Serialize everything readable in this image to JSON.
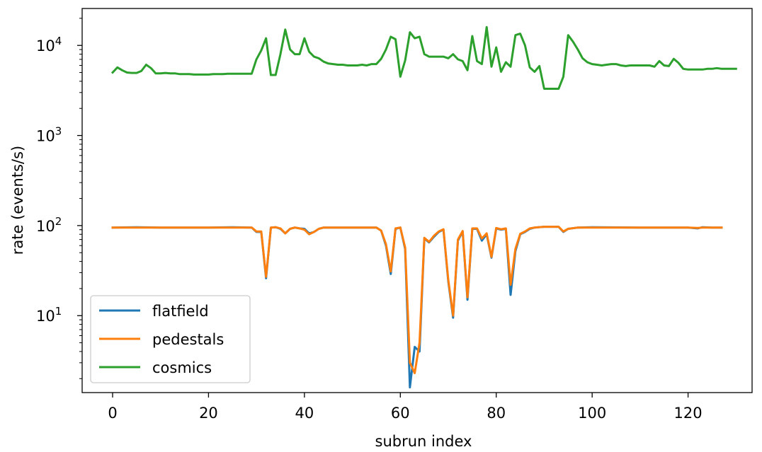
{
  "chart_data": {
    "type": "line",
    "title": "",
    "xlabel": "subrun index",
    "ylabel": "rate (events/s)",
    "yscale": "log",
    "xlim": [
      -6.35,
      133.35
    ],
    "ylim_log10": [
      0.146,
      4.41
    ],
    "x_ticks": [
      0,
      20,
      40,
      60,
      80,
      100,
      120
    ],
    "x_tick_labels": [
      "0",
      "20",
      "40",
      "60",
      "80",
      "100",
      "120"
    ],
    "y_ticks": [
      10,
      100,
      1000,
      10000
    ],
    "y_tick_labels": [
      {
        "base": "10",
        "exp": "1"
      },
      {
        "base": "10",
        "exp": "2"
      },
      {
        "base": "10",
        "exp": "3"
      },
      {
        "base": "10",
        "exp": "4"
      }
    ],
    "grid": false,
    "legend_position": "lower left",
    "series": [
      {
        "name": "flatfield",
        "color": "#1f77b4",
        "points": [
          [
            0,
            95
          ],
          [
            5,
            96
          ],
          [
            10,
            95
          ],
          [
            20,
            95
          ],
          [
            25,
            96
          ],
          [
            29,
            95
          ],
          [
            30,
            85
          ],
          [
            31,
            85
          ],
          [
            32,
            26
          ],
          [
            33,
            95
          ],
          [
            34,
            96
          ],
          [
            35,
            92
          ],
          [
            36,
            82
          ],
          [
            37,
            92
          ],
          [
            38,
            95
          ],
          [
            39,
            93
          ],
          [
            40,
            92
          ],
          [
            41,
            82
          ],
          [
            42,
            85
          ],
          [
            43,
            92
          ],
          [
            44,
            95
          ],
          [
            50,
            95
          ],
          [
            55,
            95
          ],
          [
            56,
            88
          ],
          [
            57,
            60
          ],
          [
            58,
            29
          ],
          [
            59,
            92
          ],
          [
            60,
            95
          ],
          [
            61,
            55
          ],
          [
            62,
            1.6
          ],
          [
            63,
            4.5
          ],
          [
            64,
            4
          ],
          [
            65,
            72
          ],
          [
            66,
            65
          ],
          [
            67,
            75
          ],
          [
            68,
            85
          ],
          [
            69,
            90
          ],
          [
            70,
            24
          ],
          [
            71,
            9.5
          ],
          [
            72,
            68
          ],
          [
            73,
            86
          ],
          [
            74,
            15
          ],
          [
            75,
            92
          ],
          [
            76,
            92
          ],
          [
            77,
            68
          ],
          [
            78,
            80
          ],
          [
            79,
            44
          ],
          [
            80,
            93
          ],
          [
            81,
            90
          ],
          [
            82,
            92
          ],
          [
            83,
            17
          ],
          [
            84,
            52
          ],
          [
            85,
            80
          ],
          [
            86,
            85
          ],
          [
            87,
            92
          ],
          [
            88,
            95
          ],
          [
            90,
            97
          ],
          [
            93,
            97
          ],
          [
            94,
            85
          ],
          [
            95,
            92
          ],
          [
            97,
            95
          ],
          [
            100,
            96
          ],
          [
            110,
            95
          ],
          [
            120,
            95
          ],
          [
            122,
            93
          ],
          [
            123,
            96
          ],
          [
            125,
            95
          ],
          [
            127,
            95
          ]
        ]
      },
      {
        "name": "pedestals",
        "color": "#ff7f0e",
        "points": [
          [
            0,
            95
          ],
          [
            5,
            95
          ],
          [
            10,
            95
          ],
          [
            20,
            95
          ],
          [
            25,
            95
          ],
          [
            29,
            95
          ],
          [
            30,
            86
          ],
          [
            31,
            86
          ],
          [
            32,
            27
          ],
          [
            33,
            95
          ],
          [
            34,
            96
          ],
          [
            35,
            93
          ],
          [
            36,
            82
          ],
          [
            37,
            92
          ],
          [
            38,
            95
          ],
          [
            39,
            93
          ],
          [
            40,
            90
          ],
          [
            41,
            80
          ],
          [
            42,
            85
          ],
          [
            43,
            92
          ],
          [
            44,
            95
          ],
          [
            50,
            95
          ],
          [
            55,
            95
          ],
          [
            56,
            88
          ],
          [
            57,
            62
          ],
          [
            58,
            31
          ],
          [
            59,
            93
          ],
          [
            60,
            95
          ],
          [
            61,
            57
          ],
          [
            62,
            3
          ],
          [
            63,
            2.3
          ],
          [
            64,
            5
          ],
          [
            65,
            73
          ],
          [
            66,
            66
          ],
          [
            67,
            77
          ],
          [
            68,
            86
          ],
          [
            69,
            91
          ],
          [
            70,
            25
          ],
          [
            71,
            10
          ],
          [
            72,
            70
          ],
          [
            73,
            87
          ],
          [
            74,
            16
          ],
          [
            75,
            93
          ],
          [
            76,
            93
          ],
          [
            77,
            72
          ],
          [
            78,
            82
          ],
          [
            79,
            45
          ],
          [
            80,
            94
          ],
          [
            81,
            91
          ],
          [
            82,
            93
          ],
          [
            83,
            22
          ],
          [
            84,
            55
          ],
          [
            85,
            81
          ],
          [
            86,
            86
          ],
          [
            87,
            93
          ],
          [
            88,
            95
          ],
          [
            90,
            97
          ],
          [
            93,
            97
          ],
          [
            94,
            86
          ],
          [
            95,
            92
          ],
          [
            97,
            95
          ],
          [
            100,
            95
          ],
          [
            110,
            95
          ],
          [
            120,
            95
          ],
          [
            122,
            94
          ],
          [
            123,
            95
          ],
          [
            125,
            95
          ],
          [
            127,
            95
          ]
        ]
      },
      {
        "name": "cosmics",
        "color": "#2ca02c",
        "points": [
          [
            0,
            5000
          ],
          [
            1,
            5700
          ],
          [
            2,
            5300
          ],
          [
            3,
            5000
          ],
          [
            4,
            4950
          ],
          [
            5,
            4950
          ],
          [
            6,
            5200
          ],
          [
            7,
            6100
          ],
          [
            8,
            5600
          ],
          [
            9,
            4900
          ],
          [
            10,
            4900
          ],
          [
            11,
            4950
          ],
          [
            12,
            4900
          ],
          [
            13,
            4900
          ],
          [
            14,
            4800
          ],
          [
            15,
            4800
          ],
          [
            16,
            4800
          ],
          [
            17,
            4750
          ],
          [
            18,
            4750
          ],
          [
            19,
            4750
          ],
          [
            20,
            4750
          ],
          [
            21,
            4800
          ],
          [
            22,
            4800
          ],
          [
            23,
            4800
          ],
          [
            24,
            4850
          ],
          [
            25,
            4850
          ],
          [
            26,
            4850
          ],
          [
            27,
            4850
          ],
          [
            28,
            4850
          ],
          [
            29,
            4850
          ],
          [
            30,
            7000
          ],
          [
            31,
            8800
          ],
          [
            32,
            12000
          ],
          [
            33,
            4700
          ],
          [
            34,
            4700
          ],
          [
            35,
            8000
          ],
          [
            36,
            15000
          ],
          [
            37,
            9000
          ],
          [
            38,
            8000
          ],
          [
            39,
            8000
          ],
          [
            40,
            12000
          ],
          [
            41,
            8500
          ],
          [
            42,
            7500
          ],
          [
            43,
            7200
          ],
          [
            44,
            6600
          ],
          [
            45,
            6300
          ],
          [
            46,
            6200
          ],
          [
            47,
            6100
          ],
          [
            48,
            6100
          ],
          [
            49,
            6000
          ],
          [
            50,
            6000
          ],
          [
            51,
            6000
          ],
          [
            52,
            6100
          ],
          [
            53,
            6000
          ],
          [
            54,
            6200
          ],
          [
            55,
            6200
          ],
          [
            56,
            7100
          ],
          [
            57,
            9000
          ],
          [
            58,
            12500
          ],
          [
            59,
            11700
          ],
          [
            60,
            4500
          ],
          [
            61,
            6800
          ],
          [
            62,
            14000
          ],
          [
            63,
            12000
          ],
          [
            64,
            12500
          ],
          [
            65,
            8000
          ],
          [
            66,
            7500
          ],
          [
            67,
            7500
          ],
          [
            68,
            7500
          ],
          [
            69,
            7500
          ],
          [
            70,
            7200
          ],
          [
            71,
            8000
          ],
          [
            72,
            7000
          ],
          [
            73,
            6700
          ],
          [
            74,
            5300
          ],
          [
            75,
            12700
          ],
          [
            76,
            6700
          ],
          [
            77,
            6200
          ],
          [
            78,
            16000
          ],
          [
            79,
            5800
          ],
          [
            80,
            9500
          ],
          [
            81,
            5100
          ],
          [
            82,
            6500
          ],
          [
            83,
            5800
          ],
          [
            84,
            13000
          ],
          [
            85,
            13500
          ],
          [
            86,
            10000
          ],
          [
            87,
            5700
          ],
          [
            88,
            5100
          ],
          [
            89,
            5900
          ],
          [
            90,
            3300
          ],
          [
            91,
            3300
          ],
          [
            92,
            3300
          ],
          [
            93,
            3300
          ],
          [
            94,
            4500
          ],
          [
            95,
            13000
          ],
          [
            96,
            11000
          ],
          [
            97,
            9000
          ],
          [
            98,
            7200
          ],
          [
            99,
            6500
          ],
          [
            100,
            6200
          ],
          [
            101,
            6100
          ],
          [
            102,
            6000
          ],
          [
            103,
            6100
          ],
          [
            104,
            6200
          ],
          [
            105,
            6200
          ],
          [
            106,
            6000
          ],
          [
            107,
            5900
          ],
          [
            108,
            6000
          ],
          [
            109,
            6000
          ],
          [
            110,
            6000
          ],
          [
            111,
            6000
          ],
          [
            112,
            6000
          ],
          [
            113,
            5800
          ],
          [
            114,
            6700
          ],
          [
            115,
            6000
          ],
          [
            116,
            5900
          ],
          [
            117,
            7100
          ],
          [
            118,
            6400
          ],
          [
            119,
            5500
          ],
          [
            120,
            5400
          ],
          [
            121,
            5400
          ],
          [
            122,
            5400
          ],
          [
            123,
            5400
          ],
          [
            124,
            5500
          ],
          [
            125,
            5500
          ],
          [
            126,
            5600
          ],
          [
            127,
            5500
          ],
          [
            128,
            5500
          ],
          [
            129,
            5500
          ],
          [
            130,
            5500
          ]
        ]
      }
    ]
  }
}
